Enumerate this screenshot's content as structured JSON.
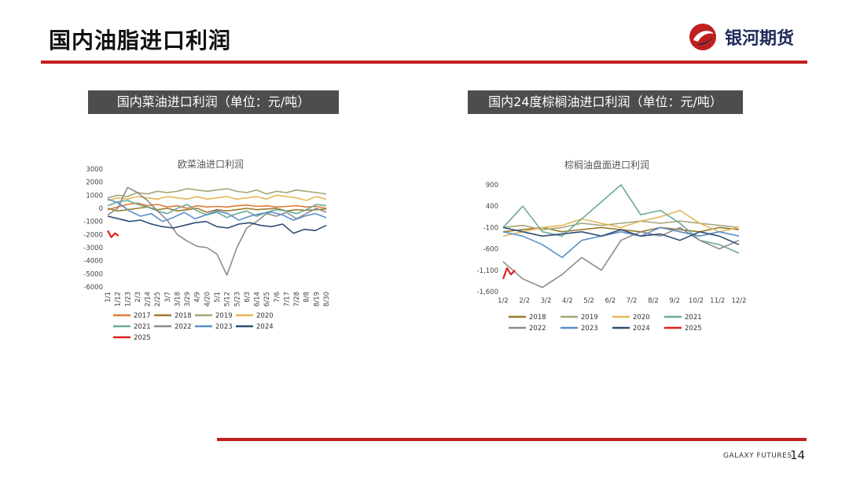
{
  "header": {
    "title": "国内油脂进口利润",
    "logo_text": "银河期货"
  },
  "sections": [
    {
      "label": "国内菜油进口利润（单位：元/吨）"
    },
    {
      "label": "国内24度棕榈油进口利润（单位：元/吨）"
    }
  ],
  "footer": {
    "brand": "GALAXY FUTURES",
    "page": "14"
  },
  "colors": {
    "accent": "#c01f1f",
    "section_bg": "#4d4d4d"
  },
  "chart_data": [
    {
      "type": "line",
      "title": "欧菜油进口利润",
      "yticks": [
        "3000",
        "2000",
        "1000",
        "0",
        "-1000",
        "-2000",
        "-3000",
        "-4000",
        "-5000",
        "-6000"
      ],
      "ylim": [
        -6000,
        3000
      ],
      "xticks": [
        "1/1",
        "1/12",
        "1/23",
        "2/3",
        "2/14",
        "2/25",
        "3/7",
        "3/18",
        "3/29",
        "4/9",
        "4/20",
        "5/1",
        "5/12",
        "5/23",
        "6/3",
        "6/14",
        "6/25",
        "7/6",
        "7/17",
        "7/28",
        "8/8",
        "8/19",
        "8/30"
      ],
      "grid": false,
      "legend_position": "bottom",
      "series": [
        {
          "name": "2017",
          "color": "#e07b39",
          "values": [
            -100,
            100,
            300,
            400,
            200,
            300,
            100,
            200,
            0,
            200,
            100,
            150,
            100,
            200,
            250,
            150,
            200,
            100,
            150,
            200,
            100,
            150,
            0
          ]
        },
        {
          "name": "2018",
          "color": "#9c7a2c",
          "values": [
            0,
            -200,
            -100,
            0,
            100,
            -100,
            0,
            -200,
            -100,
            0,
            -300,
            -100,
            -200,
            -100,
            0,
            -100,
            -50,
            0,
            -200,
            -100,
            -150,
            -100,
            -50
          ]
        },
        {
          "name": "2019",
          "color": "#a5a57a",
          "values": [
            800,
            1000,
            900,
            1200,
            1100,
            1300,
            1200,
            1300,
            1500,
            1400,
            1300,
            1400,
            1500,
            1300,
            1200,
            1400,
            1100,
            1300,
            1200,
            1400,
            1300,
            1200,
            1100
          ]
        },
        {
          "name": "2020",
          "color": "#e6b656",
          "values": [
            600,
            800,
            700,
            900,
            800,
            700,
            900,
            800,
            700,
            900,
            700,
            800,
            900,
            700,
            800,
            900,
            700,
            1000,
            900,
            800,
            600,
            900,
            700
          ]
        },
        {
          "name": "2021",
          "color": "#6aaa95",
          "values": [
            200,
            500,
            600,
            300,
            100,
            -200,
            -400,
            0,
            300,
            -200,
            -500,
            -300,
            -700,
            -400,
            -200,
            -600,
            -300,
            -100,
            -200,
            -400,
            -100,
            300,
            200
          ]
        },
        {
          "name": "2022",
          "color": "#8c8c8c",
          "values": [
            -500,
            0,
            1600,
            1200,
            600,
            -200,
            -900,
            -2000,
            -2500,
            -2900,
            -3000,
            -3500,
            -5100,
            -3000,
            -1500,
            -1000,
            -400,
            -600,
            -300,
            -800,
            -400,
            0,
            -300
          ]
        },
        {
          "name": "2023",
          "color": "#5b8fc9",
          "values": [
            700,
            400,
            -200,
            -600,
            -400,
            -1000,
            -700,
            -300,
            -800,
            -500,
            -200,
            -400,
            -900,
            -600,
            -400,
            -300,
            -500,
            -900,
            -600,
            -400,
            -700
          ]
        },
        {
          "name": "2024",
          "color": "#2e4d73",
          "values": [
            -600,
            -800,
            -1000,
            -900,
            -1200,
            -1400,
            -1500,
            -1300,
            -1100,
            -1000,
            -1400,
            -1500,
            -1200,
            -1100,
            -1300,
            -1400,
            -1200,
            -1900,
            -1600,
            -1700,
            -1300
          ]
        },
        {
          "name": "2025",
          "color": "#e02020",
          "values": [
            -1700,
            -2200,
            -1900,
            -2100
          ]
        }
      ]
    },
    {
      "type": "line",
      "title": "棕榈油盘面进口利润",
      "yticks": [
        "900",
        "400",
        "-100",
        "-600",
        "-1,100",
        "-1,600"
      ],
      "ylim": [
        -1600,
        900
      ],
      "xticks": [
        "1/2",
        "2/2",
        "3/2",
        "4/2",
        "5/2",
        "6/2",
        "7/2",
        "8/2",
        "9/2",
        "10/2",
        "11/2",
        "12/2"
      ],
      "grid": false,
      "legend_position": "bottom",
      "series": [
        {
          "name": "2018",
          "color": "#9c7a2c",
          "values": [
            -200,
            -150,
            -100,
            -200,
            -150,
            -100,
            -150,
            -200,
            -100,
            -150,
            -200,
            -100,
            -150
          ]
        },
        {
          "name": "2019",
          "color": "#a5a57a",
          "values": [
            -100,
            -50,
            -150,
            -100,
            0,
            -50,
            0,
            50,
            0,
            50,
            0,
            -50,
            -100
          ]
        },
        {
          "name": "2020",
          "color": "#e6b656",
          "values": [
            -300,
            -200,
            -100,
            -50,
            100,
            0,
            -100,
            50,
            150,
            300,
            0,
            -200,
            -100
          ]
        },
        {
          "name": "2021",
          "color": "#6aaa95",
          "values": [
            -100,
            400,
            -200,
            -300,
            100,
            500,
            900,
            200,
            300,
            0,
            -400,
            -500,
            -700
          ]
        },
        {
          "name": "2022",
          "color": "#8c8c8c",
          "values": [
            -900,
            -1300,
            -1500,
            -1200,
            -800,
            -1100,
            -400,
            -200,
            -300,
            -100,
            -400,
            -600,
            -400
          ]
        },
        {
          "name": "2023",
          "color": "#5b8fc9",
          "values": [
            -200,
            -300,
            -500,
            -800,
            -400,
            -300,
            -200,
            -300,
            -100,
            -200,
            -300,
            -200,
            -300
          ]
        },
        {
          "name": "2024",
          "color": "#2e4d73",
          "values": [
            -100,
            -200,
            -300,
            -250,
            -200,
            -300,
            -150,
            -300,
            -250,
            -400,
            -200,
            -300,
            -500
          ]
        },
        {
          "name": "2025",
          "color": "#e02020",
          "values": [
            -1300,
            -1050,
            -1200,
            -1100
          ]
        }
      ]
    }
  ]
}
